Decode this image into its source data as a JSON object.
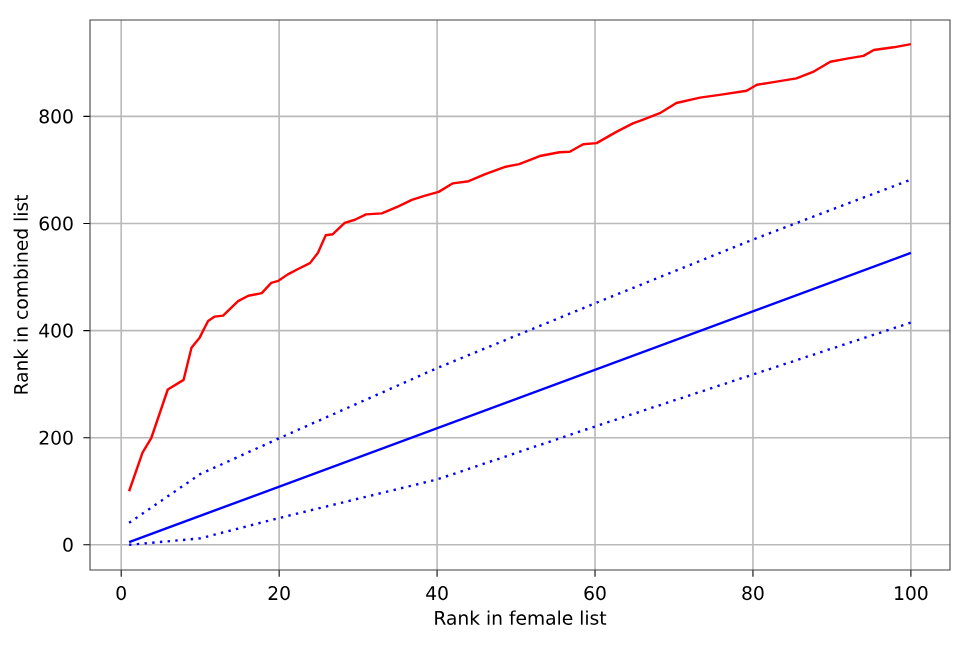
{
  "chart_data": {
    "type": "line",
    "xlabel": "Rank in female list",
    "ylabel": "Rank in combined list",
    "xlim": [
      -3.95,
      104.95
    ],
    "ylim": [
      -47,
      980
    ],
    "xticks": [
      0,
      20,
      40,
      60,
      80,
      100
    ],
    "yticks": [
      0,
      200,
      400,
      600,
      800
    ],
    "grid": true,
    "series": [
      {
        "color": "#ff0000",
        "line_style": "solid",
        "x": [
          1,
          2.7,
          3.8,
          5.9,
          7.9,
          8.9,
          9.9,
          11,
          11.8,
          12.9,
          14.8,
          16.1,
          17.8,
          19,
          19.9,
          21.1,
          22.4,
          23.9,
          24.9,
          25.9,
          26.8,
          28.3,
          29.6,
          31,
          33,
          35.1,
          36.8,
          38.5,
          40.2,
          42,
          44,
          46.1,
          48.7,
          50.4,
          53,
          55.5,
          56.8,
          58.5,
          60.2,
          62.7,
          64.8,
          66.1,
          68.2,
          70.3,
          73.3,
          76.2,
          79.2,
          80.5,
          82.6,
          85.5,
          87.6,
          89.8,
          91.9,
          94,
          95.3,
          97.8,
          100
        ],
        "values": [
          100,
          172,
          199,
          290,
          308,
          368,
          386,
          418,
          426,
          428,
          455,
          465,
          470,
          489,
          493,
          505,
          515,
          526,
          545,
          578,
          580,
          601,
          607,
          617,
          619,
          632,
          644,
          652,
          659,
          675,
          679,
          692,
          706,
          711,
          726,
          733,
          734,
          748,
          750,
          771,
          787,
          794,
          806,
          825,
          835,
          841,
          848,
          859,
          864,
          871,
          883,
          902,
          908,
          913,
          924,
          929,
          935
        ]
      },
      {
        "color": "#0000ff",
        "line_style": "solid",
        "x": [
          1,
          100
        ],
        "values": [
          5,
          545
        ]
      },
      {
        "color": "#0000ff",
        "line_style": "dotted",
        "x": [
          1,
          10,
          20,
          40,
          60,
          80,
          100
        ],
        "values": [
          41,
          132,
          199,
          330,
          451,
          570,
          682
        ]
      },
      {
        "color": "#0000ff",
        "line_style": "dotted",
        "x": [
          1,
          10,
          20,
          40,
          60,
          80,
          100
        ],
        "values": [
          0,
          12,
          50,
          122,
          221,
          318,
          415
        ]
      }
    ]
  }
}
